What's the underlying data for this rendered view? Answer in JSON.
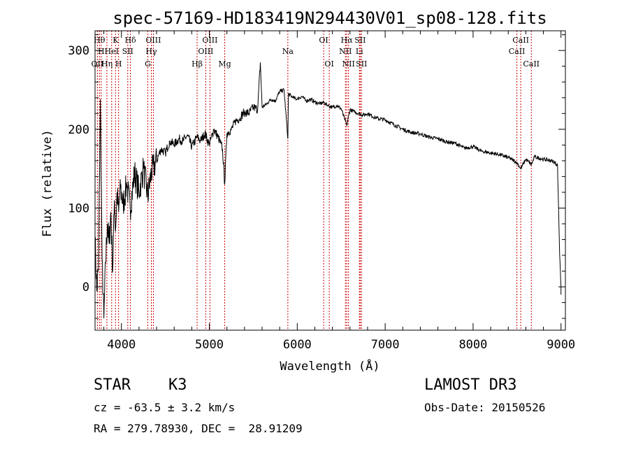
{
  "chart_data": {
    "type": "line",
    "title": "spec-57169-HD183419N294430V01_sp08-128.fits",
    "xlabel": "Wavelength (Å)",
    "ylabel": "Flux (relative)",
    "xlim": [
      3700,
      9050
    ],
    "ylim": [
      -55,
      325
    ],
    "xticks": [
      4000,
      5000,
      6000,
      7000,
      8000,
      9000
    ],
    "yticks": [
      0,
      100,
      200,
      300
    ],
    "series": [
      {
        "name": "flux",
        "x": [
          3700,
          3720,
          3740,
          3760,
          3780,
          3800,
          3820,
          3840,
          3860,
          3880,
          3900,
          3920,
          3933,
          3950,
          3968,
          3990,
          4020,
          4060,
          4100,
          4150,
          4200,
          4250,
          4300,
          4340,
          4400,
          4450,
          4500,
          4550,
          4600,
          4650,
          4700,
          4750,
          4800,
          4861,
          4900,
          4950,
          5000,
          5050,
          5100,
          5150,
          5175,
          5200,
          5250,
          5300,
          5350,
          5400,
          5450,
          5500,
          5550,
          5580,
          5600,
          5650,
          5700,
          5750,
          5800,
          5850,
          5893,
          5900,
          5950,
          6000,
          6050,
          6100,
          6150,
          6200,
          6250,
          6300,
          6350,
          6400,
          6450,
          6500,
          6563,
          6600,
          6650,
          6700,
          6750,
          6800,
          6900,
          7000,
          7100,
          7200,
          7300,
          7400,
          7500,
          7600,
          7700,
          7800,
          7900,
          8000,
          8100,
          8200,
          8300,
          8400,
          8498,
          8542,
          8600,
          8662,
          8700,
          8800,
          8900,
          8960,
          8985,
          9000
        ],
        "values": [
          60,
          -5,
          25,
          238,
          35,
          -40,
          30,
          80,
          55,
          95,
          20,
          110,
          70,
          120,
          95,
          125,
          105,
          130,
          100,
          145,
          120,
          150,
          115,
          145,
          160,
          175,
          170,
          185,
          180,
          188,
          185,
          192,
          178,
          190,
          185,
          195,
          180,
          200,
          190,
          175,
          130,
          195,
          200,
          210,
          215,
          222,
          220,
          228,
          225,
          285,
          228,
          232,
          238,
          236,
          248,
          250,
          188,
          245,
          240,
          238,
          242,
          236,
          238,
          235,
          232,
          234,
          230,
          228,
          230,
          226,
          205,
          225,
          222,
          220,
          218,
          220,
          214,
          212,
          206,
          200,
          196,
          194,
          190,
          188,
          184,
          182,
          176,
          178,
          172,
          170,
          168,
          164,
          158,
          150,
          162,
          155,
          165,
          162,
          160,
          155,
          40,
          0
        ]
      }
    ],
    "lines": [
      {
        "wl": 3750,
        "label": "Hθ",
        "row": 0
      },
      {
        "wl": 3727,
        "label": "OII",
        "row": 2
      },
      {
        "wl": 3770,
        "label": "H",
        "row": 1
      },
      {
        "wl": 3835,
        "label": "Hη",
        "row": 2
      },
      {
        "wl": 3889,
        "label": "HeI",
        "row": 1
      },
      {
        "wl": 3933,
        "label": "K",
        "row": 0
      },
      {
        "wl": 3968,
        "label": "H",
        "row": 2
      },
      {
        "wl": 4072,
        "label": "SII",
        "row": 1
      },
      {
        "wl": 4102,
        "label": "Hδ",
        "row": 0
      },
      {
        "wl": 4300,
        "label": "G",
        "row": 2
      },
      {
        "wl": 4340,
        "label": "Hγ",
        "row": 1
      },
      {
        "wl": 4363,
        "label": "OIII",
        "row": 0
      },
      {
        "wl": 4861,
        "label": "Hβ",
        "row": 2
      },
      {
        "wl": 4959,
        "label": "OIII",
        "row": 1
      },
      {
        "wl": 5007,
        "label": "OIII",
        "row": 0
      },
      {
        "wl": 5175,
        "label": "Mg",
        "row": 2
      },
      {
        "wl": 5893,
        "label": "Na",
        "row": 1
      },
      {
        "wl": 6300,
        "label": "OI",
        "row": 0
      },
      {
        "wl": 6364,
        "label": "OI",
        "row": 2
      },
      {
        "wl": 6548,
        "label": "NII",
        "row": 1
      },
      {
        "wl": 6563,
        "label": "Hα",
        "row": 0
      },
      {
        "wl": 6583,
        "label": "NII",
        "row": 2
      },
      {
        "wl": 6707,
        "label": "Li",
        "row": 1
      },
      {
        "wl": 6716,
        "label": "SII",
        "row": 0
      },
      {
        "wl": 6731,
        "label": "SII",
        "row": 2
      },
      {
        "wl": 8498,
        "label": "CaII",
        "row": 1
      },
      {
        "wl": 8542,
        "label": "CaII",
        "row": 0
      },
      {
        "wl": 8662,
        "label": "CaII",
        "row": 2
      }
    ]
  },
  "info": {
    "object_class": "STAR",
    "subclass": "K3",
    "survey": "LAMOST DR3",
    "cz": "cz = -63.5 ± 3.2 km/s",
    "obs_date": "Obs-Date: 20150526",
    "coords": "RA = 279.78930, DEC =  28.91209"
  }
}
